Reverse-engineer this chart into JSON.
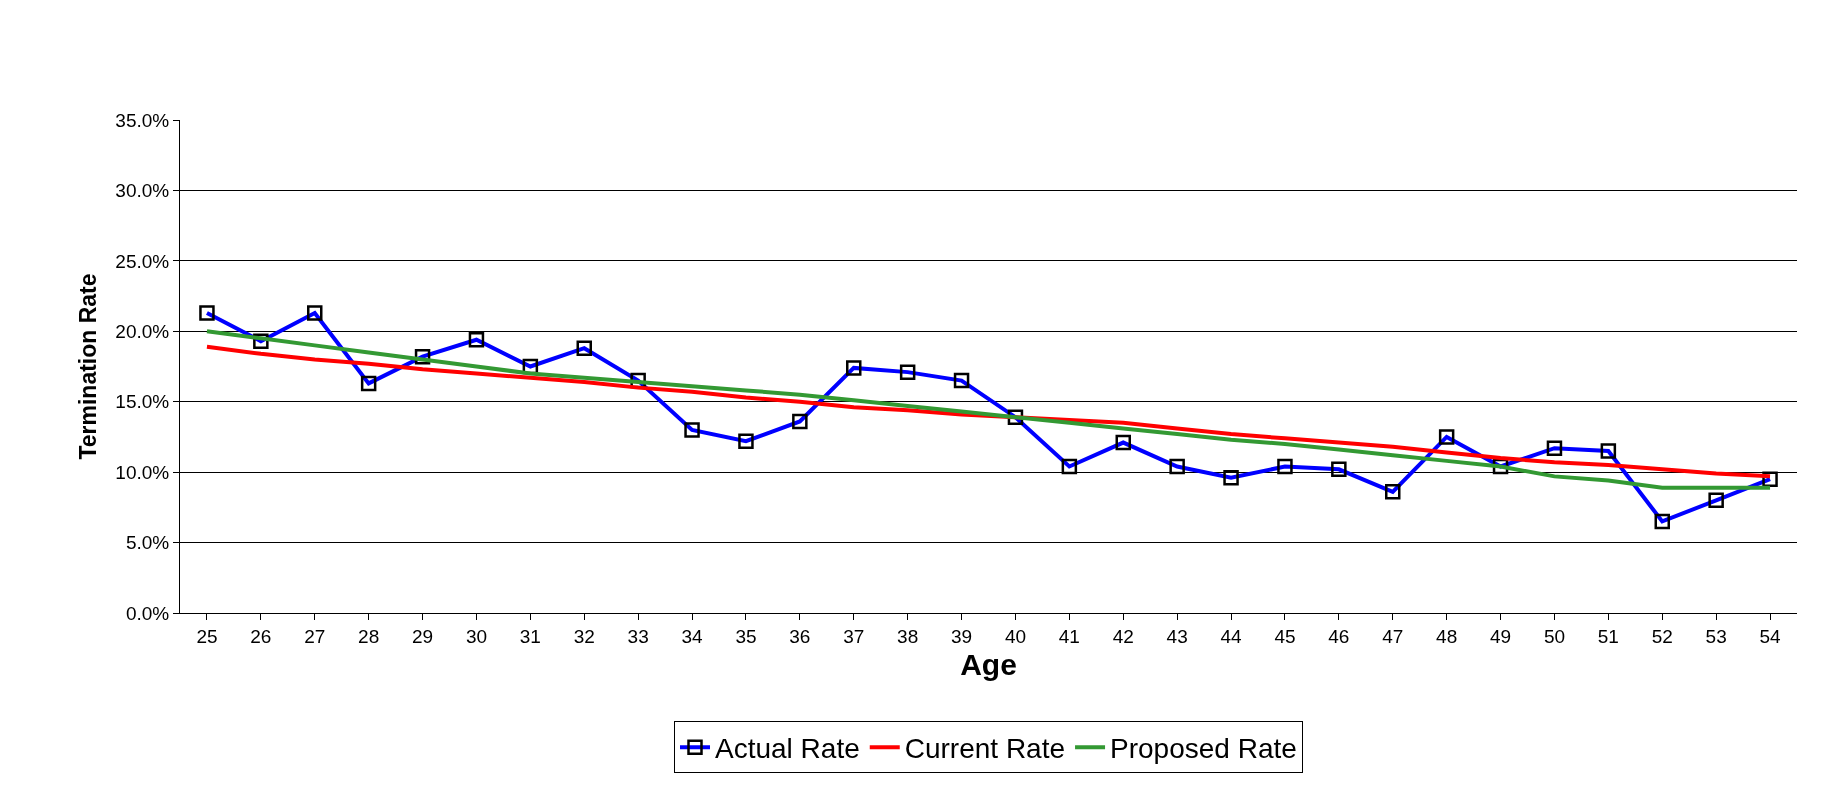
{
  "chart_data": {
    "type": "line",
    "xlabel": "Age",
    "ylabel": "Termination Rate",
    "categories": [
      "25",
      "26",
      "27",
      "28",
      "29",
      "30",
      "31",
      "32",
      "33",
      "34",
      "35",
      "36",
      "37",
      "38",
      "39",
      "40",
      "41",
      "42",
      "43",
      "44",
      "45",
      "46",
      "47",
      "48",
      "49",
      "50",
      "51",
      "52",
      "53",
      "54"
    ],
    "series": [
      {
        "name": "Actual Rate",
        "color": "#0000ff",
        "marker": "square",
        "values": [
          21.3,
          19.3,
          21.3,
          16.3,
          18.2,
          19.4,
          17.5,
          18.8,
          16.5,
          13.0,
          12.2,
          13.6,
          17.4,
          17.1,
          16.5,
          13.9,
          10.4,
          12.1,
          10.4,
          9.6,
          10.4,
          10.2,
          8.6,
          12.5,
          10.4,
          11.7,
          11.5,
          6.5,
          8.0,
          9.5
        ]
      },
      {
        "name": "Current Rate",
        "color": "#ff0000",
        "marker": "none",
        "values": [
          18.9,
          18.4,
          18.0,
          17.7,
          17.3,
          17.0,
          16.7,
          16.4,
          16.0,
          15.7,
          15.3,
          15.0,
          14.6,
          14.4,
          14.1,
          13.9,
          13.7,
          13.5,
          13.1,
          12.7,
          12.4,
          12.1,
          11.8,
          11.4,
          11.0,
          10.7,
          10.5,
          10.2,
          9.9,
          9.7
        ]
      },
      {
        "name": "Proposed Rate",
        "color": "#339933",
        "marker": "none",
        "values": [
          20.0,
          19.5,
          19.0,
          18.5,
          18.0,
          17.5,
          17.0,
          16.7,
          16.4,
          16.1,
          15.8,
          15.5,
          15.1,
          14.7,
          14.3,
          13.9,
          13.5,
          13.1,
          12.7,
          12.3,
          12.0,
          11.6,
          11.2,
          10.8,
          10.4,
          9.7,
          9.4,
          8.9,
          8.9,
          8.9
        ]
      }
    ],
    "ylim": [
      0,
      35
    ],
    "yticks": [
      {
        "value": 0,
        "label": "0.0%"
      },
      {
        "value": 5,
        "label": "5.0%"
      },
      {
        "value": 10,
        "label": "10.0%"
      },
      {
        "value": 15,
        "label": "15.0%"
      },
      {
        "value": 20,
        "label": "20.0%"
      },
      {
        "value": 25,
        "label": "25.0%"
      },
      {
        "value": 30,
        "label": "30.0%"
      },
      {
        "value": 35,
        "label": "35.0%"
      }
    ],
    "grid": "y",
    "legend": "bottom",
    "line_style": "solid"
  }
}
